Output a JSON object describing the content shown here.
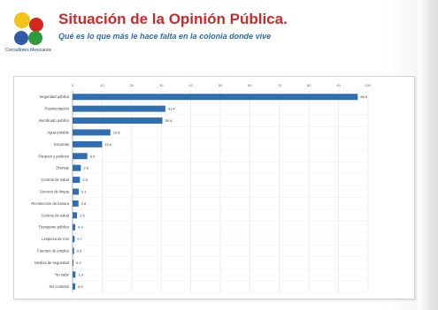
{
  "header": {
    "title": "Situación de la Opinión Pública.",
    "subtitle": "Qué es lo que más le hace falta en la colonia donde vive",
    "logo_caption": "Consultores Mexicanos",
    "colors": {
      "title": "#cc2a2a",
      "subtitle": "#2b6cae"
    }
  },
  "logo": {
    "circles": [
      "#f3c318",
      "#d4261d",
      "#2e5aa6",
      "#2f9a3c"
    ]
  },
  "chart_data": {
    "type": "bar",
    "orientation": "horizontal",
    "categories": [
      "Seguridad pública",
      "Pavimentación",
      "Alumbrado público",
      "Agua potable",
      "Escuelas",
      "Parques y jardines",
      "Drenaje",
      "Centros de salud",
      "Servicio de limpia",
      "Recolección de basura",
      "Centros de salud",
      "Transporte público",
      "Limpieza de ríos",
      "Fuentes de empleo",
      "Medios de seguridad",
      "No sabe",
      "No contestó"
    ],
    "values": [
      96.5,
      31.4,
      30.4,
      12.8,
      10.0,
      5.0,
      2.8,
      2.5,
      2.1,
      2.0,
      1.5,
      0.9,
      0.7,
      0.5,
      0.3,
      1.0,
      0.9
    ],
    "value_labels": [
      "96.5",
      "31.4",
      "30.4",
      "12.8",
      "10.0",
      "5.0",
      "2.8",
      "2.5",
      "2.1",
      "2.0",
      "1.5",
      "0.9",
      "0.7",
      "0.5",
      "0.3",
      "1.0",
      "0.9"
    ],
    "xlim": [
      0,
      100
    ],
    "xticks": [
      "0",
      "10",
      "20",
      "30",
      "40",
      "50",
      "60",
      "70",
      "80",
      "90",
      "100"
    ],
    "bar_color": "#2f6eb0",
    "grid": true
  }
}
